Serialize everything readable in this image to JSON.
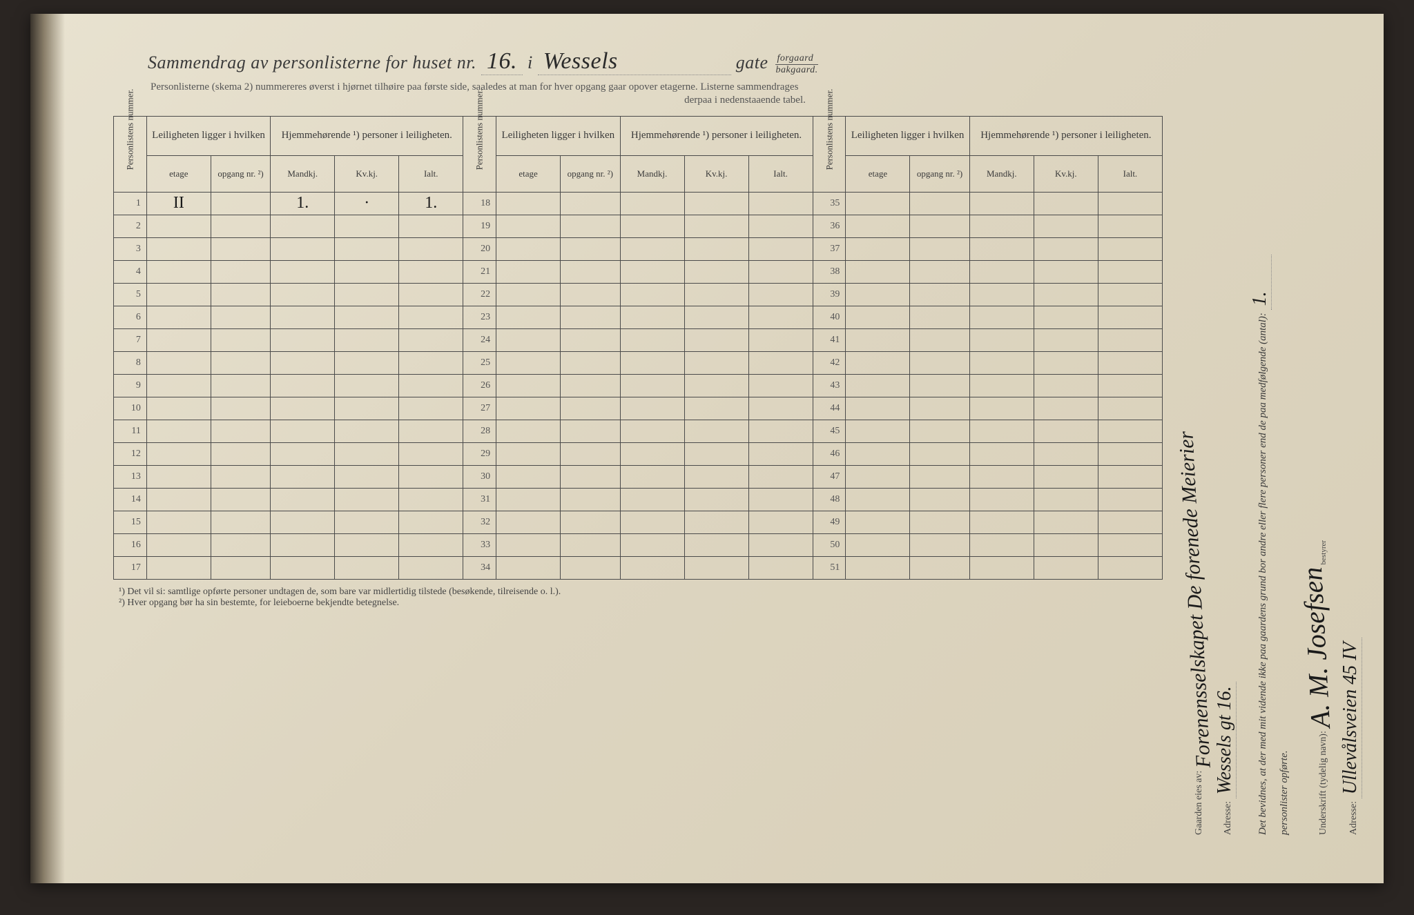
{
  "header": {
    "title_prefix": "Sammendrag av personlisterne for huset nr.",
    "house_nr": "16.",
    "i": "i",
    "street": "Wessels",
    "gate": "gate",
    "forgaard": "forgaard",
    "bakgaard": "bakgaard.",
    "subtitle": "Personlisterne (skema 2) nummereres øverst i hjørnet tilhøire paa første side, saaledes at man for hver opgang gaar opover etagerne.  Listerne sammendrages",
    "subtitle2": "derpaa i nedenstaaende tabel."
  },
  "table": {
    "col_personlistens": "Personlistens nummer.",
    "col_leiligheten": "Leiligheten ligger i hvilken",
    "col_hjemme": "Hjemmehørende ¹) personer i leiligheten.",
    "sub_etage": "etage",
    "sub_opgang": "opgang nr. ²)",
    "sub_mandkj": "Mandkj.",
    "sub_kvkj": "Kv.kj.",
    "sub_ialt": "Ialt.",
    "row_start_a": 1,
    "row_start_b": 18,
    "row_start_c": 35,
    "rows_per_block": 17,
    "row1": {
      "etage": "II",
      "mandkj": "1.",
      "kvkj": "·",
      "ialt": "1."
    }
  },
  "footnotes": {
    "f1": "¹) Det vil si: samtlige opførte personer undtagen de, som bare var midlertidig tilstede (besøkende, tilreisende o. l.).",
    "f2": "²) Hver opgang bør ha sin bestemte, for leieboerne bekjendte betegnelse."
  },
  "side": {
    "gaarden_eies": "Gaarden eies av:",
    "owner": "Forenensselskapet De forenede Meierier",
    "adresse_label": "Adresse:",
    "adresse1": "Wessels gt 16.",
    "bevidnes": "Det bevidnes, at der med mit vidende ikke paa gaardens grund bor andre eller flere personer end de paa medfølgende (antal):",
    "antal": "1.",
    "personlister": "personlister opførte.",
    "underskrift_label": "Underskrift (tydelig navn):",
    "signature": "A. M. Josefsen",
    "bestyrer": "bestyrer",
    "adresse2": "Ullevålsveien 45 IV"
  },
  "colors": {
    "paper": "#e0d8c4",
    "ink": "#3a3a3a",
    "handwriting": "#1a1a1a",
    "rule": "#4a4a4a"
  }
}
